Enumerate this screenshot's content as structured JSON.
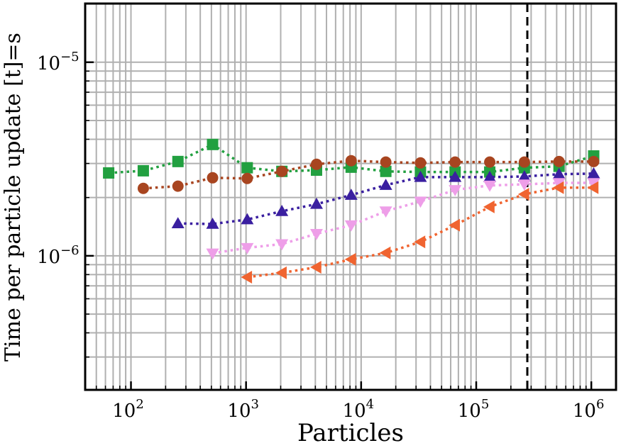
{
  "chart_data": {
    "type": "line",
    "xlabel": "Particles",
    "ylabel": "Time per particle update [t]=s",
    "xscale": "log",
    "yscale": "log",
    "xlim": [
      40,
      1640000
    ],
    "ylim": [
      2.03e-07,
      2.01e-05
    ],
    "grid": true,
    "x_tick_labels": [
      {
        "base": "10",
        "exp": "2",
        "value": 100
      },
      {
        "base": "10",
        "exp": "3",
        "value": 1000
      },
      {
        "base": "10",
        "exp": "4",
        "value": 10000
      },
      {
        "base": "10",
        "exp": "5",
        "value": 100000
      },
      {
        "base": "10",
        "exp": "6",
        "value": 1000000
      }
    ],
    "y_tick_labels": [
      {
        "base": "10",
        "exp": "−5",
        "value": 1e-05
      },
      {
        "base": "10",
        "exp": "−6",
        "value": 1e-06
      }
    ],
    "vline": {
      "x": 278000,
      "style": "dashed",
      "color": "#000000"
    },
    "series": [
      {
        "marker": "square",
        "color": "#22a040",
        "x": [
          64,
          128,
          256,
          512,
          1024,
          2048,
          4096,
          8192,
          16384,
          32768,
          65536,
          131072,
          262144,
          524288,
          1048576
        ],
        "y": [
          2.68e-06,
          2.75e-06,
          3.07e-06,
          3.76e-06,
          2.85e-06,
          2.73e-06,
          2.77e-06,
          2.87e-06,
          2.73e-06,
          2.71e-06,
          2.71e-06,
          2.71e-06,
          2.85e-06,
          2.9e-06,
          3.28e-06
        ]
      },
      {
        "marker": "circle",
        "color": "#a84520",
        "x": [
          128,
          256,
          512,
          1024,
          2048,
          4096,
          8192,
          16384,
          32768,
          65536,
          131072,
          262144,
          524288,
          1048576
        ],
        "y": [
          2.23e-06,
          2.29e-06,
          2.53e-06,
          2.51e-06,
          2.73e-06,
          2.97e-06,
          3.1e-06,
          3.05e-06,
          3.02e-06,
          3.05e-06,
          3.05e-06,
          3.05e-06,
          3.07e-06,
          3.07e-06
        ]
      },
      {
        "marker": "triangle-up",
        "color": "#3a1fa0",
        "x": [
          256,
          512,
          1024,
          2048,
          4096,
          8192,
          16384,
          32768,
          65536,
          131072,
          262144,
          524288,
          1048576
        ],
        "y": [
          1.47e-06,
          1.46e-06,
          1.54e-06,
          1.7e-06,
          1.85e-06,
          2.06e-06,
          2.32e-06,
          2.55e-06,
          2.55e-06,
          2.55e-06,
          2.57e-06,
          2.64e-06,
          2.66e-06
        ]
      },
      {
        "marker": "triangle-down",
        "color": "#ee9ee8",
        "x": [
          512,
          1024,
          2048,
          4096,
          8192,
          16384,
          32768,
          65536,
          131072,
          262144,
          524288,
          1048576
        ],
        "y": [
          1.03e-06,
          1.1e-06,
          1.15e-06,
          1.3e-06,
          1.44e-06,
          1.7e-06,
          1.91e-06,
          2.19e-06,
          2.31e-06,
          2.34e-06,
          2.38e-06,
          2.38e-06
        ]
      },
      {
        "marker": "triangle-left",
        "color": "#f06430",
        "x": [
          1024,
          2048,
          4096,
          8192,
          16384,
          32768,
          65536,
          131072,
          262144,
          524288,
          1048576
        ],
        "y": [
          7.76e-07,
          8.17e-07,
          8.73e-07,
          9.59e-07,
          1.035e-06,
          1.18e-06,
          1.44e-06,
          1.79e-06,
          2.08e-06,
          2.25e-06,
          2.25e-06
        ]
      }
    ]
  }
}
